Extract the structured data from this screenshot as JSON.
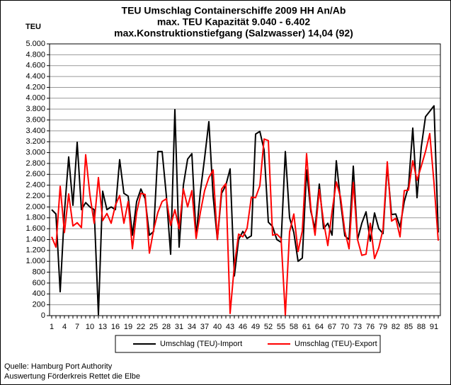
{
  "chart_data": {
    "type": "line",
    "title": [
      "TEU Umschlag Containerschiffe 2009 HH An/Ab",
      "max. TEU Kapazität  9.040 - 6.402",
      "max.Konstruktionstiefgang (Salzwasser) 14,04 (92)"
    ],
    "y_label": "TEU",
    "source": [
      "Quelle: Hamburg Port Authority",
      "Auswertung Förderkreis Rettet die Elbe"
    ],
    "categories": [
      1,
      null,
      null,
      4,
      null,
      null,
      7,
      null,
      null,
      10,
      null,
      null,
      13,
      null,
      null,
      16,
      null,
      null,
      19,
      null,
      null,
      22,
      null,
      null,
      25,
      null,
      null,
      28,
      null,
      null,
      31,
      null,
      null,
      34,
      null,
      null,
      37,
      null,
      null,
      40,
      null,
      null,
      43,
      null,
      null,
      46,
      null,
      null,
      49,
      null,
      null,
      52,
      null,
      null,
      55,
      null,
      null,
      58,
      null,
      null,
      61,
      null,
      null,
      64,
      null,
      null,
      67,
      null,
      null,
      70,
      null,
      null,
      73,
      null,
      null,
      76,
      null,
      null,
      79,
      null,
      null,
      82,
      null,
      null,
      85,
      null,
      null,
      88,
      null,
      null,
      91,
      null
    ],
    "series": [
      {
        "name": "Umschlag (TEU)-Import",
        "color": "#000000",
        "values": [
          1950,
          1870,
          440,
          1900,
          2920,
          2030,
          3190,
          1950,
          2080,
          2000,
          1950,
          20,
          2290,
          1950,
          2000,
          1950,
          2870,
          2250,
          2200,
          1480,
          2100,
          2330,
          2150,
          1480,
          1550,
          3020,
          3020,
          2200,
          1130,
          3790,
          1260,
          2400,
          2880,
          2980,
          1450,
          2280,
          2900,
          3570,
          2200,
          1400,
          2250,
          2400,
          2700,
          730,
          1400,
          1550,
          1420,
          1470,
          3340,
          3390,
          3050,
          1720,
          1640,
          1400,
          1350,
          3020,
          1800,
          1530,
          1000,
          1060,
          2680,
          1920,
          1600,
          2420,
          1600,
          1700,
          1480,
          2850,
          2100,
          1470,
          1400,
          2750,
          1400,
          1700,
          1910,
          1370,
          1890,
          1600,
          1510,
          2760,
          1860,
          1870,
          1630,
          2100,
          2380,
          3450,
          2170,
          3100,
          3660,
          3760,
          3860,
          1530
        ]
      },
      {
        "name": "Umschlag (TEU)-Export",
        "color": "#ff0000",
        "values": [
          1450,
          1260,
          2380,
          1530,
          2240,
          1650,
          1710,
          1620,
          2960,
          2220,
          1700,
          2540,
          1750,
          1880,
          1700,
          2030,
          2210,
          1700,
          2100,
          1230,
          1900,
          2250,
          2230,
          1150,
          1580,
          1900,
          2100,
          2150,
          1660,
          1950,
          1600,
          2330,
          2000,
          2300,
          1420,
          1900,
          2300,
          2540,
          2680,
          1400,
          2330,
          2430,
          40,
          920,
          1500,
          1450,
          1610,
          2180,
          2170,
          2390,
          3250,
          3220,
          1480,
          1500,
          1420,
          10,
          1540,
          1870,
          1180,
          1560,
          2980,
          1980,
          1480,
          2320,
          1730,
          1290,
          1920,
          2460,
          2180,
          1560,
          1230,
          2450,
          1400,
          1110,
          1130,
          1700,
          1050,
          1250,
          1590,
          2830,
          1740,
          1790,
          1450,
          2300,
          2310,
          2850,
          2490,
          2750,
          3020,
          3350,
          2440,
          1380
        ]
      }
    ],
    "ylim": [
      0,
      5000
    ],
    "yticks": [
      0,
      {
        "value": 200,
        "label": "200"
      },
      {
        "value": 400,
        "label": "400"
      },
      {
        "value": 600,
        "label": "600"
      },
      {
        "value": 800,
        "label": "800"
      },
      {
        "value": 1000,
        "label": "1.000"
      },
      {
        "value": 1200,
        "label": "1.200"
      },
      {
        "value": 1400,
        "label": "1.400"
      },
      {
        "value": 1600,
        "label": "1.600"
      },
      {
        "value": 1800,
        "label": "1.800"
      },
      {
        "value": 2000,
        "label": "2.000"
      },
      {
        "value": 2200,
        "label": "2.200"
      },
      {
        "value": 2400,
        "label": "2.400"
      },
      {
        "value": 2600,
        "label": "2.600"
      },
      {
        "value": 2800,
        "label": "2.800"
      },
      {
        "value": 3000,
        "label": "3.000"
      },
      {
        "value": 3200,
        "label": "3.200"
      },
      {
        "value": 3400,
        "label": "3.400"
      },
      {
        "value": 3600,
        "label": "3.600"
      },
      {
        "value": 3800,
        "label": "3.800"
      },
      {
        "value": 4000,
        "label": "4.000"
      },
      {
        "value": 4200,
        "label": "4.200"
      },
      {
        "value": 4400,
        "label": "4.400"
      },
      {
        "value": 4600,
        "label": "4.600"
      },
      {
        "value": 4800,
        "label": "4.800"
      },
      {
        "value": 5000,
        "label": "5.000"
      }
    ],
    "grid": true
  }
}
